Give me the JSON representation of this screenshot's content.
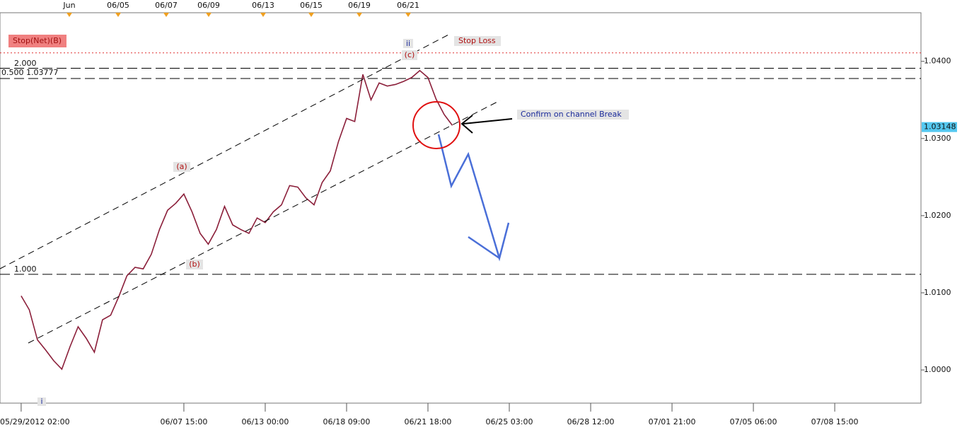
{
  "chart_data": {
    "type": "line",
    "color": "#8b1f3a",
    "xlim": [
      -2.6,
      110.6
    ],
    "ylim": [
      0.9957,
      1.0463
    ],
    "values": [
      1.0096,
      1.0078,
      1.0039,
      1.0026,
      1.0012,
      1.0001,
      1.003,
      1.0056,
      1.0041,
      1.0023,
      1.0065,
      1.0071,
      1.0095,
      1.0122,
      1.0133,
      1.0131,
      1.015,
      1.0182,
      1.0207,
      1.0216,
      1.0228,
      1.0205,
      1.0177,
      1.0163,
      1.0182,
      1.0212,
      1.0188,
      1.0182,
      1.0177,
      1.0197,
      1.0191,
      1.0205,
      1.0214,
      1.0239,
      1.0237,
      1.0223,
      1.0214,
      1.0243,
      1.0258,
      1.0296,
      1.0326,
      1.0322,
      1.0383,
      1.035,
      1.0372,
      1.0368,
      1.037,
      1.0374,
      1.0379,
      1.0388,
      1.0379,
      1.0351,
      1.0331,
      1.0317
    ],
    "yticks": [
      {
        "value": 1.0,
        "label": "1.0000"
      },
      {
        "value": 1.01,
        "label": "1.0100"
      },
      {
        "value": 1.02,
        "label": "1.0200"
      },
      {
        "value": 1.03,
        "label": "1.0300"
      },
      {
        "value": 1.04,
        "label": "1.0400"
      }
    ],
    "xticks": [
      {
        "value": 0,
        "label": "05/29/2012 02:00"
      },
      {
        "value": 20,
        "label": "06/07 15:00"
      },
      {
        "value": 30,
        "label": "06/13 00:00"
      },
      {
        "value": 40,
        "label": "06/18 09:00"
      },
      {
        "value": 50,
        "label": "06/21 18:00"
      },
      {
        "value": 60,
        "label": "06/25 03:00"
      },
      {
        "value": 70,
        "label": "06/28 12:00"
      },
      {
        "value": 80,
        "label": "07/01 21:00"
      },
      {
        "value": 90,
        "label": "07/05 06:00"
      },
      {
        "value": 100,
        "label": "07/08 15:00"
      }
    ],
    "top_labels": [
      "Jun",
      "06/05",
      "06/07",
      "06/09",
      "06/13",
      "06/15",
      "06/19",
      "06/21"
    ],
    "last_price": 1.03148,
    "levels": [
      {
        "label": "Stop Loss",
        "value": 1.0411,
        "color": "#e03030"
      },
      {
        "label": "2.000",
        "value": 1.0391,
        "color": "#000000"
      },
      {
        "label": "0.500 1.03777",
        "value": 1.03777,
        "color": "#000000"
      },
      {
        "label": "1.000",
        "value": 1.0124,
        "color": "#000000"
      }
    ],
    "annotations": {
      "stop_net": "Stop(Net)(B)",
      "confirm": "Confirm on channel Break",
      "wave_a": "(a)",
      "wave_b": "(b)",
      "wave_c": "(c)",
      "wave_ii": "ii",
      "wave_i": "i"
    }
  }
}
